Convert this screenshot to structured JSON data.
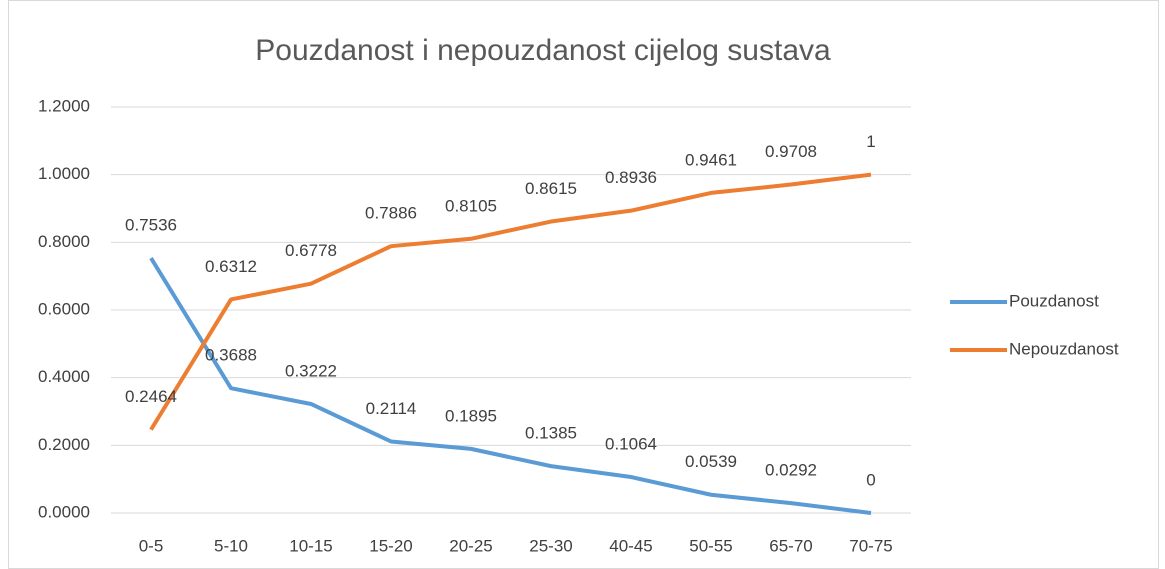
{
  "chart_data": {
    "type": "line",
    "title": "Pouzdanost i nepouzdanost cijelog sustava",
    "categories": [
      "0-5",
      "5-10",
      "10-15",
      "15-20",
      "20-25",
      "25-30",
      "40-45",
      "50-55",
      "65-70",
      "70-75"
    ],
    "series": [
      {
        "name": "Pouzdanost",
        "color": "#5b9bd5",
        "values": [
          0.7536,
          0.3688,
          0.3222,
          0.2114,
          0.1895,
          0.1385,
          0.1064,
          0.0539,
          0.0292,
          0
        ]
      },
      {
        "name": "Nepouzdanost",
        "color": "#ed7d31",
        "values": [
          0.2464,
          0.6312,
          0.6778,
          0.7886,
          0.8105,
          0.8615,
          0.8936,
          0.9461,
          0.9708,
          1
        ]
      }
    ],
    "ylim": [
      0,
      1.2
    ],
    "yticks": [
      {
        "value": 0,
        "label": "0.0000"
      },
      {
        "value": 0.2,
        "label": "0.2000"
      },
      {
        "value": 0.4,
        "label": "0.4000"
      },
      {
        "value": 0.6,
        "label": "0.6000"
      },
      {
        "value": 0.8,
        "label": "0.8000"
      },
      {
        "value": 1,
        "label": "1.0000"
      },
      {
        "value": 1.2,
        "label": "1.2000"
      }
    ],
    "grid": true,
    "legend": "right"
  }
}
